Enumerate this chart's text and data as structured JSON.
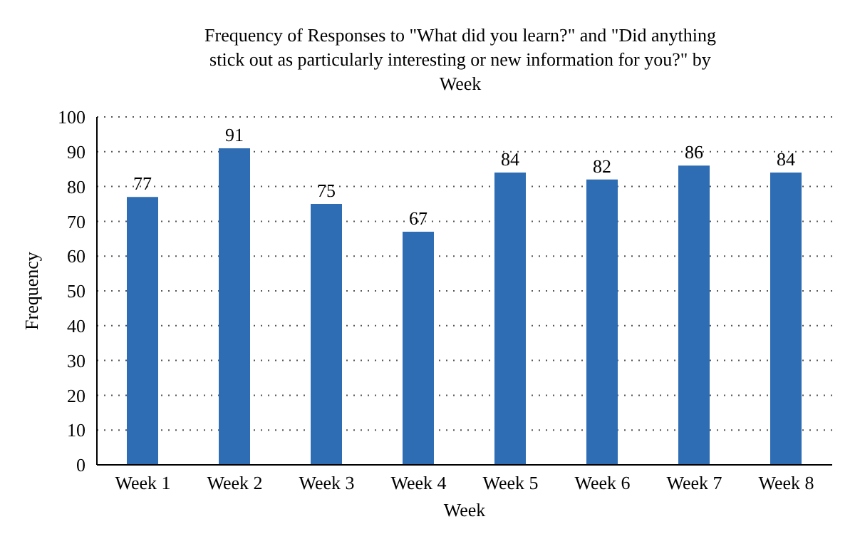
{
  "chart_data": {
    "type": "bar",
    "title": "Frequency of Responses to \"What did you learn?\" and \"Did anything stick out as particularly interesting or new information for you?\" by Week",
    "categories": [
      "Week 1",
      "Week 2",
      "Week 3",
      "Week 4",
      "Week 5",
      "Week 6",
      "Week 7",
      "Week 8"
    ],
    "values": [
      77,
      91,
      75,
      67,
      84,
      82,
      86,
      84
    ],
    "color": "#2e6db4",
    "xlabel": "Week",
    "ylabel": "Frequency",
    "ylim": [
      0,
      100
    ],
    "yticks": [
      0,
      10,
      20,
      30,
      40,
      50,
      60,
      70,
      80,
      90,
      100
    ],
    "grid": "y",
    "data_labels": true
  }
}
